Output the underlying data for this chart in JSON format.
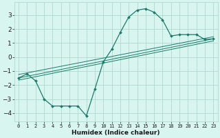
{
  "xlabel": "Humidex (Indice chaleur)",
  "xlim": [
    -0.5,
    23.5
  ],
  "ylim": [
    -4.6,
    3.9
  ],
  "yticks": [
    -4,
    -3,
    -2,
    -1,
    0,
    1,
    2,
    3
  ],
  "xticks": [
    0,
    1,
    2,
    3,
    4,
    5,
    6,
    7,
    8,
    9,
    10,
    11,
    12,
    13,
    14,
    15,
    16,
    17,
    18,
    19,
    20,
    21,
    22,
    23
  ],
  "bg_color": "#d8f5f0",
  "grid_color": "#b0d9d0",
  "line_color": "#1a7a6a",
  "line1_x": [
    0,
    1,
    2,
    3,
    4,
    5,
    6,
    7,
    8,
    9,
    10,
    11,
    12,
    13,
    14,
    15,
    16,
    17,
    18,
    19,
    20,
    21,
    22,
    23
  ],
  "line1_y": [
    -1.5,
    -1.2,
    -1.7,
    -3.0,
    -3.5,
    -3.5,
    -3.5,
    -3.5,
    -4.2,
    -2.3,
    -0.35,
    0.55,
    1.75,
    2.85,
    3.35,
    3.45,
    3.2,
    2.65,
    1.5,
    1.6,
    1.6,
    1.6,
    1.25,
    1.3
  ],
  "line2_x": [
    0,
    23
  ],
  "line2_y": [
    -1.5,
    1.3
  ],
  "line3_x": [
    0,
    23
  ],
  "line3_y": [
    -1.25,
    1.45
  ],
  "line4_x": [
    0,
    23
  ],
  "line4_y": [
    -1.65,
    1.15
  ]
}
